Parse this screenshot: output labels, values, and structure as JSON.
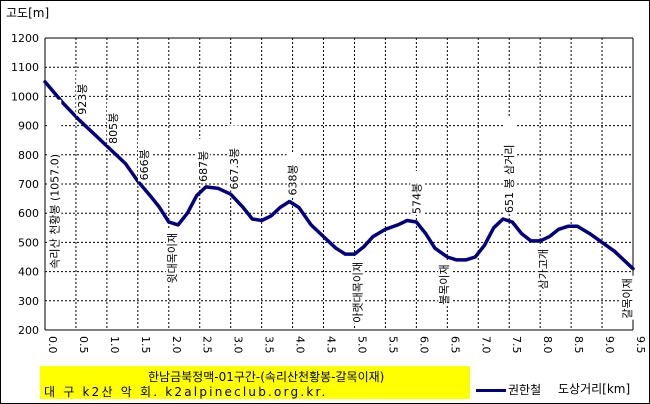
{
  "chart_data": {
    "type": "line",
    "title": "한남금북정맥-01구간-(속리산천황봉-갈목이재)",
    "credit": "대 구 k2산 악 회. k2alpineclub.org.kr.",
    "ylabel": "고도[m]",
    "xlabel": "도상거리[km]",
    "xlim": [
      0.0,
      9.5
    ],
    "ylim": [
      200,
      1200
    ],
    "x_ticks": [
      "0.0",
      "0.5",
      "1.0",
      "1.5",
      "2.0",
      "2.5",
      "3.0",
      "3.5",
      "4.0",
      "4.5",
      "5.0",
      "5.5",
      "6.0",
      "6.5",
      "7.0",
      "7.5",
      "8.0",
      "8.5",
      "9.0",
      "9.5"
    ],
    "y_ticks": [
      "200",
      "300",
      "400",
      "500",
      "600",
      "700",
      "800",
      "900",
      "1000",
      "1100",
      "1200"
    ],
    "grid": true,
    "legend": "bottom-right",
    "series": [
      {
        "name": "권한철",
        "color": "#000080",
        "x": [
          0.0,
          0.3,
          0.55,
          0.8,
          1.05,
          1.3,
          1.5,
          1.7,
          1.85,
          2.0,
          2.15,
          2.3,
          2.45,
          2.6,
          2.8,
          3.0,
          3.2,
          3.35,
          3.5,
          3.65,
          3.8,
          3.95,
          4.1,
          4.3,
          4.5,
          4.7,
          4.85,
          5.0,
          5.15,
          5.3,
          5.5,
          5.7,
          5.85,
          6.0,
          6.15,
          6.3,
          6.5,
          6.65,
          6.8,
          6.95,
          7.1,
          7.25,
          7.4,
          7.55,
          7.7,
          7.85,
          8.0,
          8.15,
          8.3,
          8.45,
          8.6,
          8.8,
          9.0,
          9.2,
          9.5
        ],
        "y": [
          1050,
          975,
          920,
          870,
          820,
          770,
          710,
          660,
          620,
          570,
          560,
          600,
          660,
          690,
          685,
          665,
          620,
          580,
          575,
          590,
          620,
          640,
          620,
          560,
          520,
          480,
          460,
          460,
          485,
          520,
          545,
          560,
          575,
          570,
          530,
          480,
          450,
          440,
          440,
          450,
          490,
          550,
          580,
          570,
          530,
          505,
          505,
          520,
          545,
          555,
          555,
          530,
          500,
          470,
          410
        ]
      }
    ],
    "annotations": [
      {
        "x": 0.15,
        "label": "속리산 천황봉 (1057.0)"
      },
      {
        "x": 0.6,
        "label": "923봉"
      },
      {
        "x": 1.1,
        "label": "805봉"
      },
      {
        "x": 1.6,
        "label": "666봉"
      },
      {
        "x": 2.05,
        "label": "윗대목이재"
      },
      {
        "x": 2.55,
        "label": "687봉"
      },
      {
        "x": 3.05,
        "label": "667.3봉"
      },
      {
        "x": 4.0,
        "label": "638봉"
      },
      {
        "x": 5.05,
        "label": "아랫대목이재"
      },
      {
        "x": 6.0,
        "label": "574봉"
      },
      {
        "x": 6.45,
        "label": "불목이재"
      },
      {
        "x": 7.5,
        "label": "651 봉 삼거리"
      },
      {
        "x": 8.05,
        "label": "삼가고개"
      },
      {
        "x": 9.55,
        "label": "갈목이재"
      }
    ]
  }
}
